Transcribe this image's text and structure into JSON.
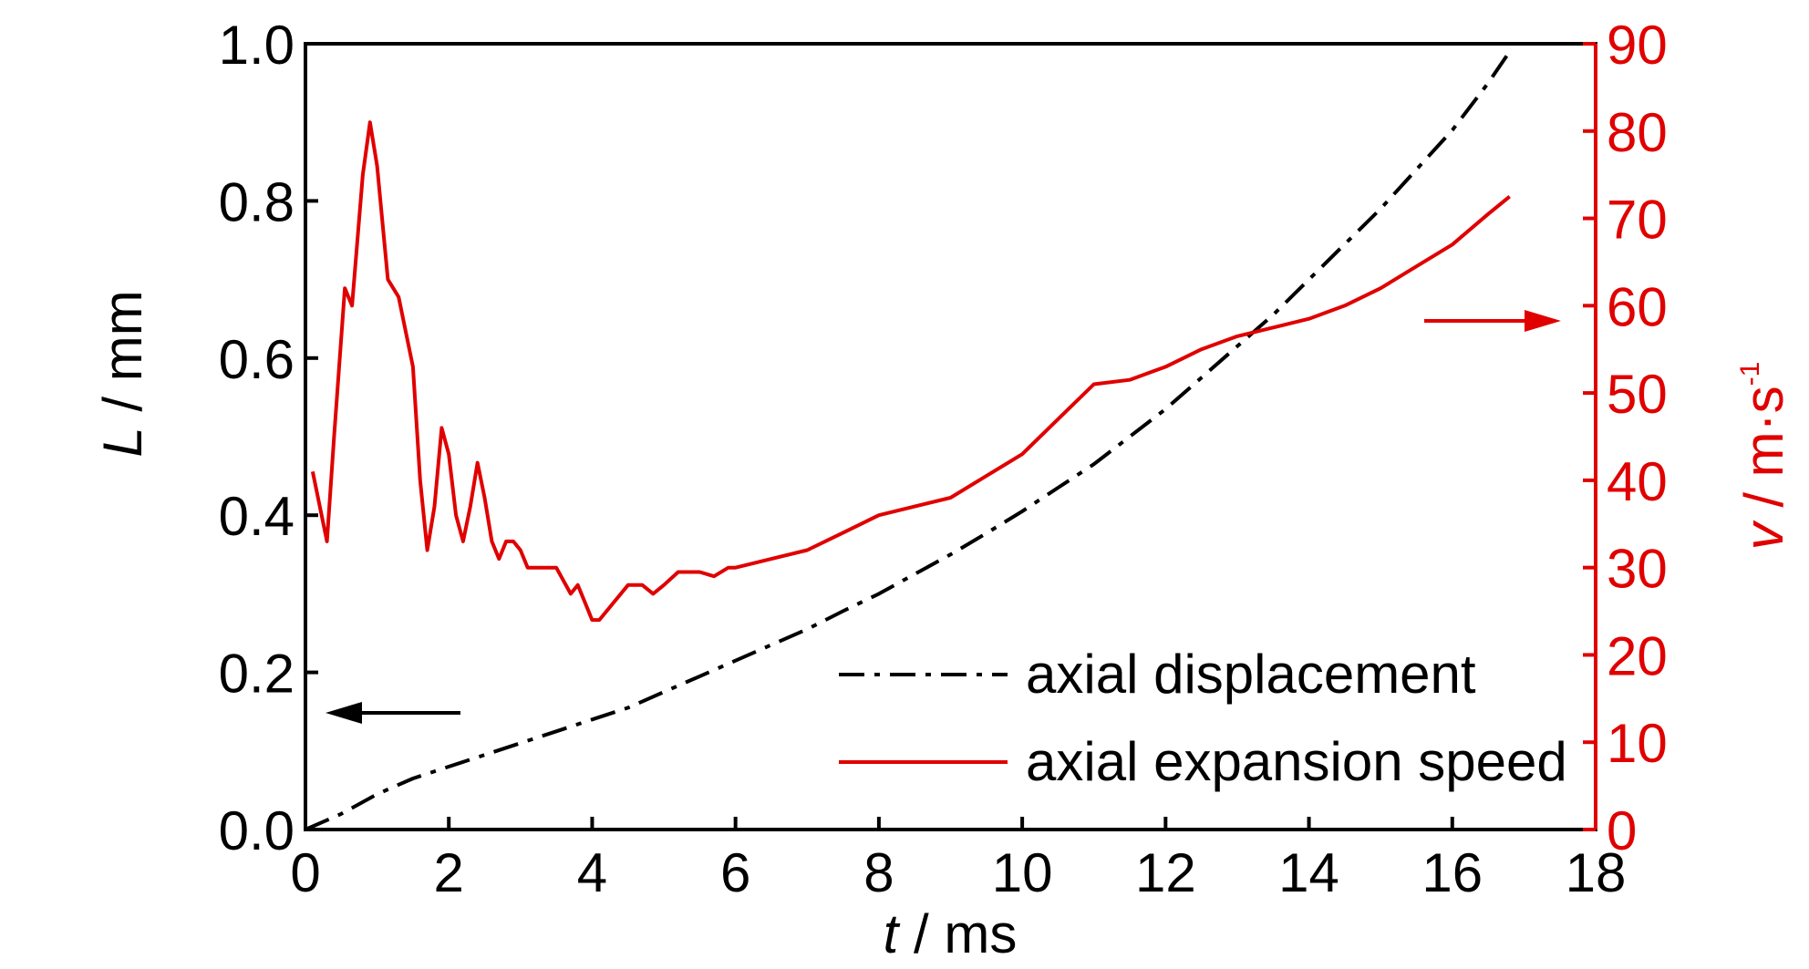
{
  "colors": {
    "axis": "#000000",
    "speed": "#e00000",
    "displacement": "#000000"
  },
  "chart_data": {
    "type": "line",
    "x_axis": {
      "label_var": "t",
      "label_unit": " / ms",
      "range": [
        0,
        18
      ],
      "ticks": [
        0,
        2,
        4,
        6,
        8,
        10,
        12,
        14,
        16,
        18
      ],
      "tick_labels": [
        "0",
        "2",
        "4",
        "6",
        "8",
        "10",
        "12",
        "14",
        "16",
        "18"
      ]
    },
    "y_axis_left": {
      "label_var": "L",
      "label_unit": " / mm",
      "range": [
        0,
        1.0
      ],
      "ticks": [
        0,
        0.2,
        0.4,
        0.6,
        0.8,
        1.0
      ],
      "tick_labels": [
        "0.0",
        "0.2",
        "0.4",
        "0.6",
        "0.8",
        "1.0"
      ]
    },
    "y_axis_right": {
      "label_var": "v",
      "label_unit": " / m·s",
      "label_sup": "-1",
      "range": [
        0,
        90
      ],
      "ticks": [
        0,
        10,
        20,
        30,
        40,
        50,
        60,
        70,
        80,
        90
      ],
      "tick_labels": [
        "0",
        "10",
        "20",
        "30",
        "40",
        "50",
        "60",
        "70",
        "80",
        "90"
      ]
    },
    "grid": false,
    "legend_position": "bottom-right",
    "series": [
      {
        "name": "axial displacement",
        "axis": "left",
        "style": "dash-dot",
        "color": "#000000",
        "points": [
          [
            0,
            0
          ],
          [
            0.5,
            0.02
          ],
          [
            1.0,
            0.045
          ],
          [
            1.5,
            0.065
          ],
          [
            2.0,
            0.08
          ],
          [
            2.5,
            0.095
          ],
          [
            3.0,
            0.11
          ],
          [
            3.5,
            0.125
          ],
          [
            4.0,
            0.14
          ],
          [
            4.5,
            0.155
          ],
          [
            5.0,
            0.175
          ],
          [
            5.5,
            0.195
          ],
          [
            6.0,
            0.215
          ],
          [
            6.5,
            0.235
          ],
          [
            7.0,
            0.255
          ],
          [
            7.5,
            0.278
          ],
          [
            8.0,
            0.3
          ],
          [
            8.5,
            0.325
          ],
          [
            9.0,
            0.35
          ],
          [
            9.5,
            0.377
          ],
          [
            10.0,
            0.405
          ],
          [
            10.5,
            0.435
          ],
          [
            11.0,
            0.465
          ],
          [
            11.5,
            0.5
          ],
          [
            12.0,
            0.535
          ],
          [
            12.5,
            0.575
          ],
          [
            13.0,
            0.615
          ],
          [
            13.5,
            0.655
          ],
          [
            14.0,
            0.7
          ],
          [
            14.5,
            0.745
          ],
          [
            15.0,
            0.79
          ],
          [
            15.5,
            0.84
          ],
          [
            16.0,
            0.89
          ],
          [
            16.5,
            0.95
          ],
          [
            16.8,
            0.99
          ]
        ]
      },
      {
        "name": "axial expansion speed",
        "axis": "right",
        "style": "solid",
        "color": "#e00000",
        "points": [
          [
            0.1,
            41
          ],
          [
            0.3,
            33
          ],
          [
            0.4,
            45
          ],
          [
            0.55,
            62
          ],
          [
            0.65,
            60
          ],
          [
            0.8,
            75
          ],
          [
            0.9,
            81
          ],
          [
            1.0,
            76
          ],
          [
            1.15,
            63
          ],
          [
            1.3,
            61
          ],
          [
            1.5,
            53
          ],
          [
            1.6,
            40
          ],
          [
            1.7,
            32
          ],
          [
            1.8,
            37
          ],
          [
            1.9,
            46
          ],
          [
            2.0,
            43
          ],
          [
            2.1,
            36
          ],
          [
            2.2,
            33
          ],
          [
            2.3,
            37
          ],
          [
            2.4,
            42
          ],
          [
            2.5,
            38
          ],
          [
            2.6,
            33
          ],
          [
            2.7,
            31
          ],
          [
            2.8,
            33
          ],
          [
            2.9,
            33
          ],
          [
            3.0,
            32
          ],
          [
            3.1,
            30
          ],
          [
            3.5,
            30
          ],
          [
            3.7,
            27
          ],
          [
            3.8,
            28
          ],
          [
            3.9,
            26
          ],
          [
            4.0,
            24
          ],
          [
            4.1,
            24
          ],
          [
            4.3,
            26
          ],
          [
            4.5,
            28
          ],
          [
            4.7,
            28
          ],
          [
            4.85,
            27
          ],
          [
            5.0,
            28
          ],
          [
            5.2,
            29.5
          ],
          [
            5.5,
            29.5
          ],
          [
            5.7,
            29
          ],
          [
            5.9,
            30
          ],
          [
            6.0,
            30
          ],
          [
            6.5,
            31
          ],
          [
            7.0,
            32
          ],
          [
            7.5,
            34
          ],
          [
            8.0,
            36
          ],
          [
            8.5,
            37
          ],
          [
            9.0,
            38
          ],
          [
            9.5,
            40.5
          ],
          [
            10.0,
            43
          ],
          [
            10.5,
            47
          ],
          [
            11.0,
            51
          ],
          [
            11.5,
            51.5
          ],
          [
            12.0,
            53
          ],
          [
            12.5,
            55
          ],
          [
            13.0,
            56.5
          ],
          [
            13.5,
            57.5
          ],
          [
            14.0,
            58.5
          ],
          [
            14.5,
            60
          ],
          [
            15.0,
            62
          ],
          [
            15.5,
            64.5
          ],
          [
            16.0,
            67
          ],
          [
            16.5,
            70.5
          ],
          [
            16.8,
            72.5
          ]
        ]
      }
    ]
  }
}
